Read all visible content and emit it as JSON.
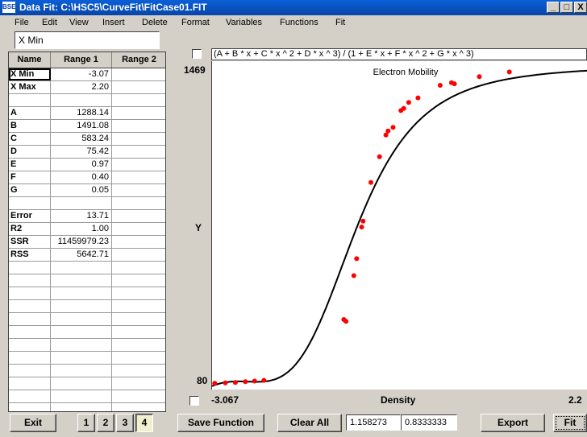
{
  "window": {
    "app_icon": "BSE",
    "title": "Data Fit: C:\\HSC5\\CurveFit\\FitCase01.FIT",
    "minimize": "_",
    "maximize": "□",
    "close": "X"
  },
  "menu": [
    "File",
    "Edit",
    "View",
    "Insert",
    "Delete",
    "Format",
    "Variables",
    "Functions",
    "Fit"
  ],
  "name_box": "X Min",
  "grid": {
    "headers": [
      "Name",
      "Range 1",
      "Range 2"
    ],
    "rows": [
      {
        "name": "X Min",
        "r1": "-3.07",
        "r2": ""
      },
      {
        "name": "X Max",
        "r1": "2.20",
        "r2": ""
      },
      {
        "name": "",
        "r1": "",
        "r2": ""
      },
      {
        "name": "A",
        "r1": "1288.14",
        "r2": ""
      },
      {
        "name": "B",
        "r1": "1491.08",
        "r2": ""
      },
      {
        "name": "C",
        "r1": "583.24",
        "r2": ""
      },
      {
        "name": "D",
        "r1": "75.42",
        "r2": ""
      },
      {
        "name": "E",
        "r1": "0.97",
        "r2": ""
      },
      {
        "name": "F",
        "r1": "0.40",
        "r2": ""
      },
      {
        "name": "G",
        "r1": "0.05",
        "r2": ""
      },
      {
        "name": "",
        "r1": "",
        "r2": ""
      },
      {
        "name": "Error",
        "r1": "13.71",
        "r2": ""
      },
      {
        "name": "R2",
        "r1": "1.00",
        "r2": ""
      },
      {
        "name": "SSR",
        "r1": "11459979.23",
        "r2": ""
      },
      {
        "name": "RSS",
        "r1": "5642.71",
        "r2": ""
      },
      {
        "name": "",
        "r1": "",
        "r2": ""
      },
      {
        "name": "",
        "r1": "",
        "r2": ""
      },
      {
        "name": "",
        "r1": "",
        "r2": ""
      },
      {
        "name": "",
        "r1": "",
        "r2": ""
      },
      {
        "name": "",
        "r1": "",
        "r2": ""
      },
      {
        "name": "",
        "r1": "",
        "r2": ""
      },
      {
        "name": "",
        "r1": "",
        "r2": ""
      },
      {
        "name": "",
        "r1": "",
        "r2": ""
      },
      {
        "name": "",
        "r1": "",
        "r2": ""
      },
      {
        "name": "",
        "r1": "",
        "r2": ""
      },
      {
        "name": "",
        "r1": "",
        "r2": ""
      },
      {
        "name": "",
        "r1": "",
        "r2": ""
      }
    ]
  },
  "formula": "(A + B * x + C * x ^ 2 + D * x ^ 3) / (1 + E * x + F * x ^ 2 + G * x ^ 3)",
  "chart_data": {
    "type": "scatter",
    "title": "Electron Mobility",
    "xlabel": "Density",
    "ylabel": "Y",
    "x_min_label": "-3.067",
    "x_max_label": "2.2",
    "y_max_label": "1469",
    "y_min_label": "80",
    "xlim": [
      -3.067,
      2.2
    ],
    "ylim": [
      80,
      1469
    ],
    "fit_color": "#000000",
    "point_color": "#ff0000",
    "points": [
      {
        "x": -3.03,
        "y": 86
      },
      {
        "x": -2.88,
        "y": 88
      },
      {
        "x": -2.74,
        "y": 90
      },
      {
        "x": -2.6,
        "y": 93
      },
      {
        "x": -2.47,
        "y": 96
      },
      {
        "x": -2.34,
        "y": 99
      },
      {
        "x": -1.22,
        "y": 367
      },
      {
        "x": -1.19,
        "y": 359
      },
      {
        "x": -1.08,
        "y": 560
      },
      {
        "x": -1.04,
        "y": 635
      },
      {
        "x": -0.97,
        "y": 774
      },
      {
        "x": -0.95,
        "y": 800
      },
      {
        "x": -0.84,
        "y": 970
      },
      {
        "x": -0.72,
        "y": 1084
      },
      {
        "x": -0.63,
        "y": 1179
      },
      {
        "x": -0.6,
        "y": 1197
      },
      {
        "x": -0.53,
        "y": 1213
      },
      {
        "x": -0.42,
        "y": 1287
      },
      {
        "x": -0.38,
        "y": 1296
      },
      {
        "x": -0.31,
        "y": 1323
      },
      {
        "x": -0.18,
        "y": 1343
      },
      {
        "x": 0.13,
        "y": 1398
      },
      {
        "x": 0.29,
        "y": 1410
      },
      {
        "x": 0.33,
        "y": 1405
      },
      {
        "x": 0.68,
        "y": 1436
      },
      {
        "x": 1.1,
        "y": 1457
      }
    ],
    "fit_params": {
      "A": 1288.14,
      "B": 1491.08,
      "C": 583.24,
      "D": 75.42,
      "E": 0.97,
      "F": 0.4,
      "G": 0.05
    }
  },
  "footer": {
    "exit_label": "Exit",
    "pages": [
      "1",
      "2",
      "3",
      "4"
    ],
    "active_page": "4",
    "save_function_label": "Save Function",
    "clear_all_label": "Clear All",
    "value1": "1.158273",
    "value2": "0.8333333",
    "export_label": "Export",
    "fit_label": "Fit"
  }
}
